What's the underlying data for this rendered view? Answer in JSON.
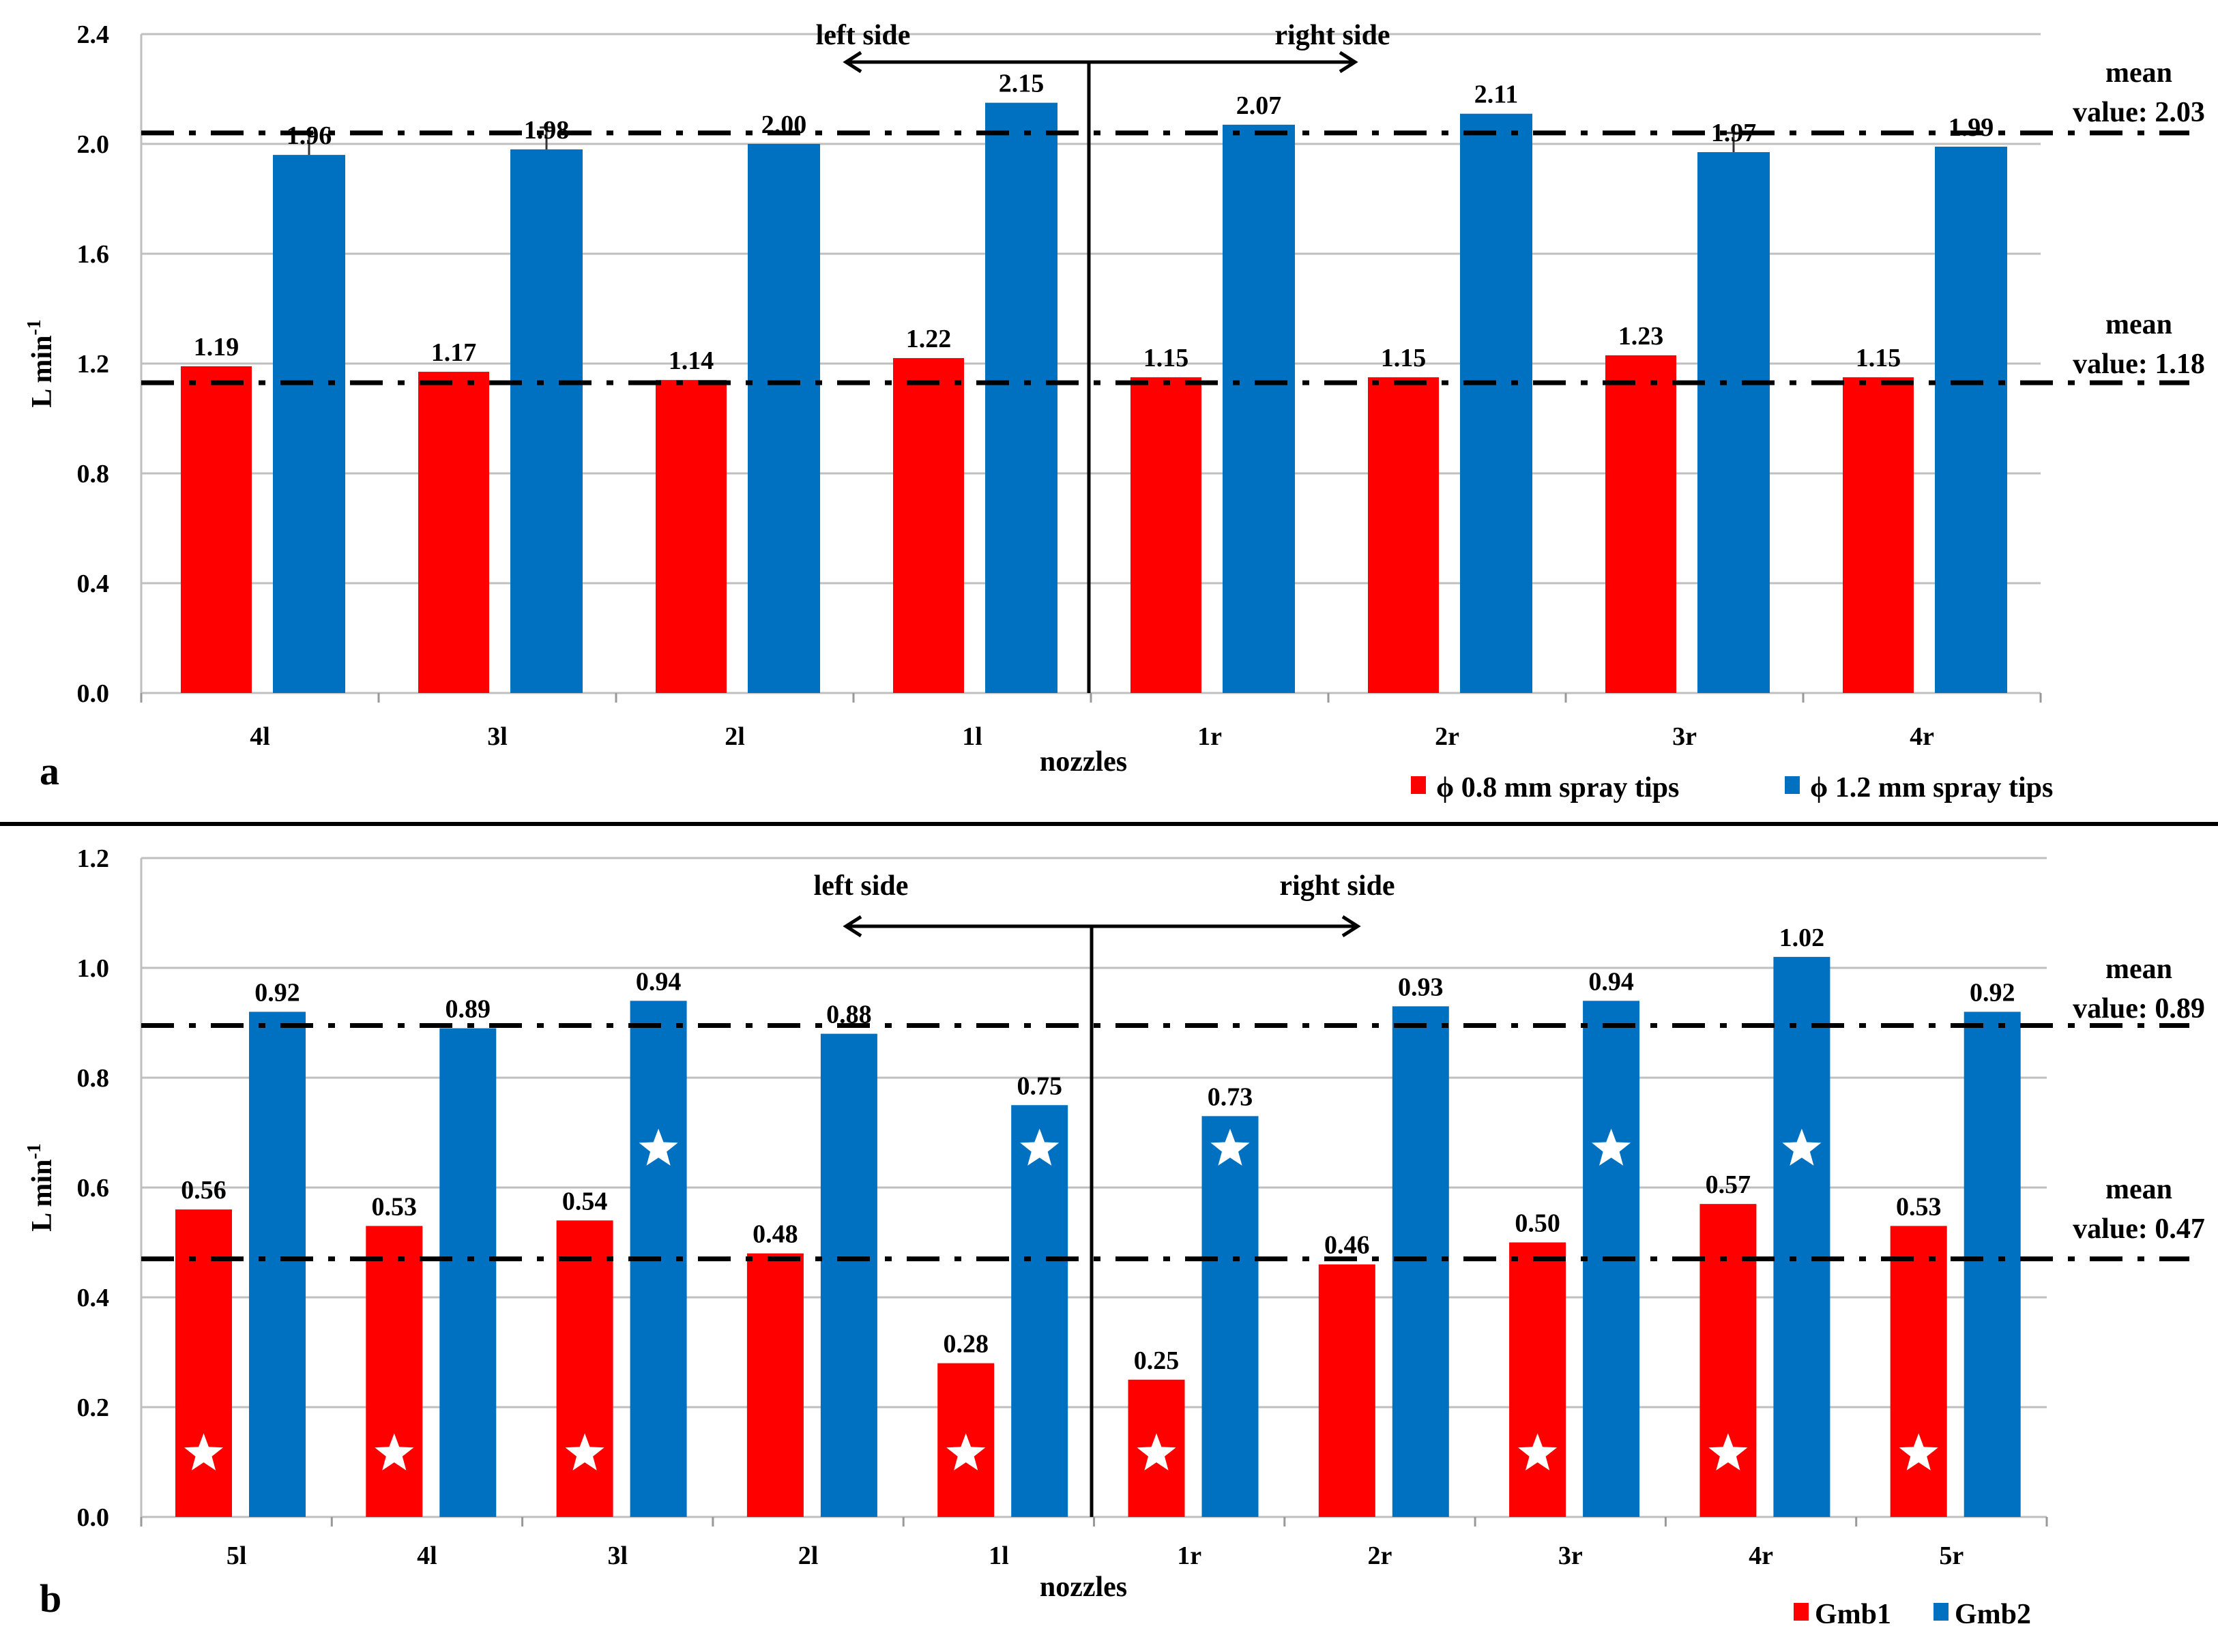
{
  "colors": {
    "series1": "#ff0000",
    "series2": "#0070c0",
    "grid": "#bfbfbf"
  },
  "chart_data": [
    {
      "type": "bar",
      "panel_label": "a",
      "xlabel": "nozzles",
      "ylabel": "L min",
      "ylabel_sup": "-1",
      "ylim": [
        0,
        2.4
      ],
      "yticks": [
        "0.0",
        "0.4",
        "0.8",
        "1.2",
        "1.6",
        "2.0",
        "2.4"
      ],
      "grid": true,
      "legend_position": "bottom-right",
      "side_labels": {
        "left": "left side",
        "right": "right side"
      },
      "categories": [
        "4l",
        "3l",
        "2l",
        "1l",
        "1r",
        "2r",
        "3r",
        "4r"
      ],
      "series": [
        {
          "name": "ϕ  0.8 mm spray tips",
          "values": [
            1.19,
            1.17,
            1.14,
            1.22,
            1.15,
            1.15,
            1.23,
            1.15
          ],
          "labels": [
            "1.19",
            "1.17",
            "1.14",
            "1.22",
            "1.15",
            "1.15",
            "1.23",
            "1.15"
          ]
        },
        {
          "name": "ϕ  1.2 mm spray tips",
          "values": [
            1.96,
            1.98,
            2.0,
            2.15,
            2.07,
            2.11,
            1.97,
            1.99
          ],
          "labels": [
            "1.96",
            "1.98",
            "2.00",
            "2.15",
            "2.07",
            "2.11",
            "1.97",
            "1.99"
          ],
          "error_upper": [
            2.04,
            2.06,
            null,
            null,
            null,
            null,
            2.04,
            null
          ]
        }
      ],
      "mean_lines": [
        {
          "value": 2.03,
          "line_at": 2.04,
          "label1": "mean",
          "label2": "value: 2.03"
        },
        {
          "value": 1.18,
          "line_at": 1.13,
          "label1": "mean",
          "label2": "value: 1.18"
        }
      ]
    },
    {
      "type": "bar",
      "panel_label": "b",
      "xlabel": "nozzles",
      "ylabel": "L min",
      "ylabel_sup": "-1",
      "ylim": [
        0,
        1.2
      ],
      "yticks": [
        "0.0",
        "0.2",
        "0.4",
        "0.6",
        "0.8",
        "1.0",
        "1.2"
      ],
      "grid": true,
      "legend_position": "bottom-right",
      "side_labels": {
        "left": "left side",
        "right": "right side"
      },
      "categories": [
        "5l",
        "4l",
        "3l",
        "2l",
        "1l",
        "1r",
        "2r",
        "3r",
        "4r",
        "5r"
      ],
      "series": [
        {
          "name": "Gmb1",
          "values": [
            0.56,
            0.53,
            0.54,
            0.48,
            0.28,
            0.25,
            0.46,
            0.5,
            0.57,
            0.53
          ],
          "labels": [
            "0.56",
            "0.53",
            "0.54",
            "0.48",
            "0.28",
            "0.25",
            "0.46",
            "0.50",
            "0.57",
            "0.53"
          ],
          "stars": [
            true,
            true,
            true,
            false,
            true,
            true,
            false,
            true,
            true,
            true
          ]
        },
        {
          "name": "Gmb2",
          "values": [
            0.92,
            0.89,
            0.94,
            0.88,
            0.75,
            0.73,
            0.93,
            0.94,
            1.02,
            0.92
          ],
          "labels": [
            "0.92",
            "0.89",
            "0.94",
            "0.88",
            "0.75",
            "0.73",
            "0.93",
            "0.94",
            "1.02",
            "0.92"
          ],
          "stars": [
            false,
            false,
            true,
            false,
            true,
            true,
            false,
            true,
            true,
            false
          ]
        }
      ],
      "mean_lines": [
        {
          "value": 0.89,
          "line_at": 0.895,
          "label1": "mean",
          "label2": "value: 0.89"
        },
        {
          "value": 0.47,
          "line_at": 0.47,
          "label1": "mean",
          "label2": "value: 0.47"
        }
      ]
    }
  ]
}
